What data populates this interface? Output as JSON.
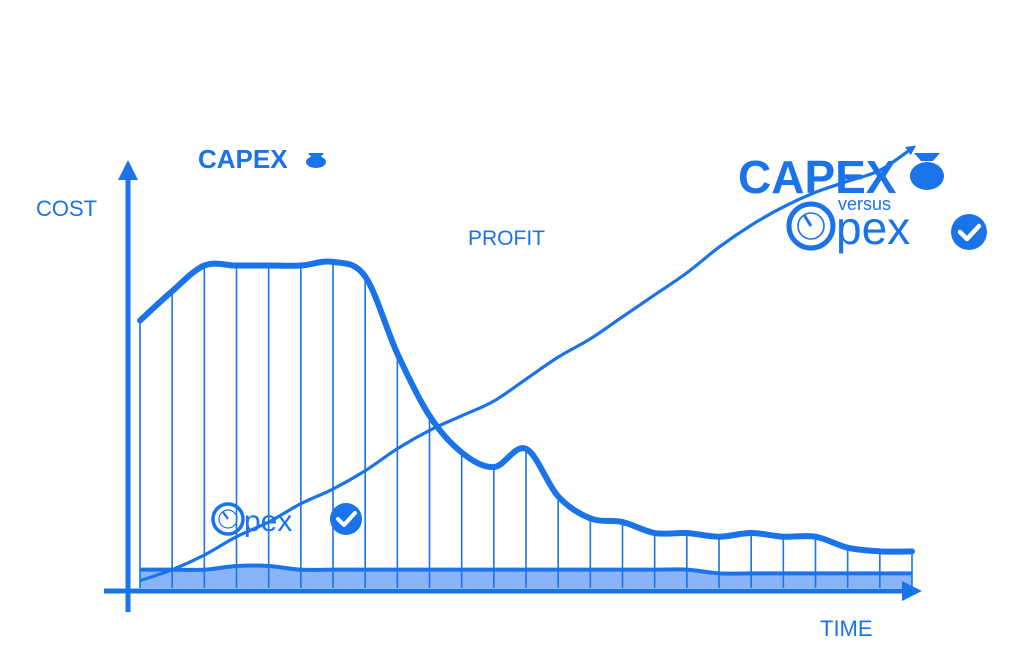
{
  "chart_data": {
    "type": "line",
    "xlabel": "TIME",
    "ylabel": "COST",
    "x": [
      1,
      2,
      3,
      4,
      5,
      6,
      7,
      8,
      9,
      10,
      11,
      12,
      13,
      14,
      15,
      16,
      17,
      18,
      19,
      20,
      21,
      22,
      23,
      24,
      25
    ],
    "series": [
      {
        "name": "CAPEX",
        "values": [
          73,
          81,
          88,
          88,
          88,
          88,
          89,
          85,
          64,
          47,
          37,
          33,
          38,
          25,
          19,
          18,
          15,
          15,
          14,
          15,
          14,
          14,
          11,
          10,
          10
        ]
      },
      {
        "name": "PROFIT",
        "values": [
          2,
          5,
          9,
          14,
          18,
          23,
          27,
          32,
          38,
          43,
          47,
          51,
          57,
          63,
          68,
          74,
          80,
          86,
          93,
          99,
          104,
          108,
          111,
          114,
          120
        ]
      },
      {
        "name": "Opex",
        "values": [
          5,
          5,
          5,
          6,
          6,
          5,
          5,
          5,
          5,
          5,
          5,
          5,
          5,
          5,
          5,
          5,
          5,
          5,
          4,
          4,
          4,
          4,
          4,
          4,
          4
        ]
      }
    ],
    "ylim": [
      0,
      140
    ],
    "colors": {
      "primary": "#1a73e8",
      "fill": "#8ab4f8"
    }
  },
  "labels": {
    "cost": "COST",
    "time": "TIME",
    "profit": "PROFIT",
    "capex_title": "CAPEX",
    "opex_small": "pex"
  },
  "badge": {
    "capex": "CAPEX",
    "versus": "versus",
    "opex": "pex"
  }
}
